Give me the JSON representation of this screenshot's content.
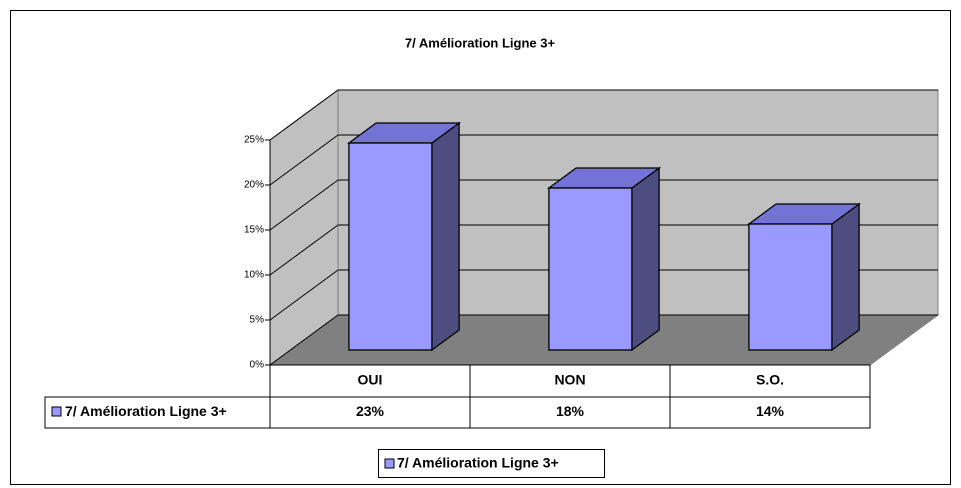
{
  "chart_data": {
    "type": "bar",
    "title": "7/ Amélioration Ligne 3+",
    "categories": [
      "OUI",
      "NON",
      "S.O."
    ],
    "series": [
      {
        "name": "7/ Amélioration Ligne 3+",
        "color": "#9999ff",
        "values": [
          23,
          18,
          14
        ],
        "value_labels": [
          "23%",
          "18%",
          "14%"
        ]
      }
    ],
    "ylim": [
      0,
      25
    ],
    "yticks": [
      {
        "value": 0,
        "label": "0%"
      },
      {
        "value": 5,
        "label": "5%"
      },
      {
        "value": 10,
        "label": "10%"
      },
      {
        "value": 15,
        "label": "15%"
      },
      {
        "value": 20,
        "label": "20%"
      },
      {
        "value": 25,
        "label": "25%"
      }
    ],
    "grid": true,
    "legend": "bottom"
  }
}
